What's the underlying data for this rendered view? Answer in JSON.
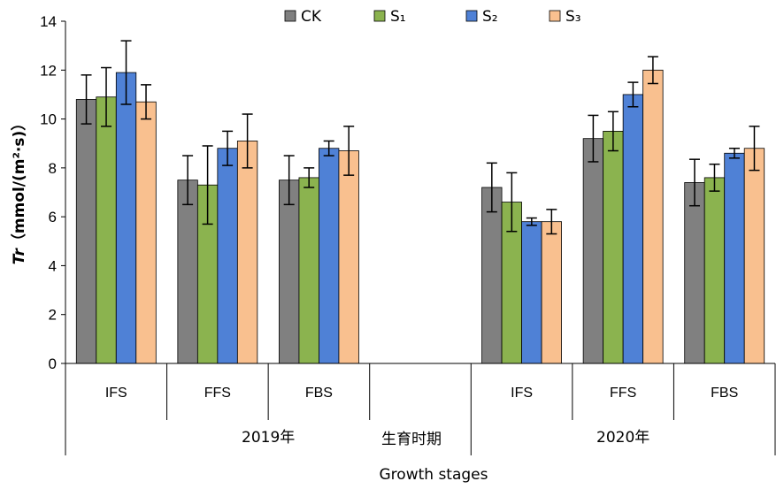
{
  "chart_data": {
    "type": "bar",
    "ylim": [
      0,
      14
    ],
    "yticks": [
      0,
      2,
      4,
      6,
      8,
      10,
      12,
      14
    ],
    "ylabel_symbol": "Tr",
    "ylabel_unit": "（mmol/(m²·s)）",
    "xlabel_cn": "生育时期",
    "xlabel_en": "Growth stages",
    "groups": [
      {
        "label": "2019年",
        "categories": [
          "IFS",
          "FFS",
          "FBS",
          ""
        ]
      },
      {
        "label": "2020年",
        "categories": [
          "IFS",
          "FFS",
          "FBS"
        ]
      }
    ],
    "categories": [
      "IFS",
      "FFS",
      "FBS",
      "",
      "IFS",
      "FFS",
      "FBS"
    ],
    "legend_position": "top",
    "series": [
      {
        "name": "CK",
        "color": "#808080",
        "values": [
          10.8,
          7.5,
          7.5,
          null,
          7.2,
          9.2,
          7.4
        ],
        "errors": [
          1.0,
          1.0,
          1.0,
          null,
          1.0,
          0.95,
          0.95
        ]
      },
      {
        "name": "S₁",
        "color": "#8bb34f",
        "values": [
          10.9,
          7.3,
          7.6,
          null,
          6.6,
          9.5,
          7.6
        ],
        "errors": [
          1.2,
          1.6,
          0.4,
          null,
          1.2,
          0.8,
          0.55
        ]
      },
      {
        "name": "S₂",
        "color": "#4f81d6",
        "values": [
          11.9,
          8.8,
          8.8,
          null,
          5.8,
          11.0,
          8.6
        ],
        "errors": [
          1.3,
          0.7,
          0.3,
          null,
          0.15,
          0.5,
          0.2
        ]
      },
      {
        "name": "S₃",
        "color": "#f9c08f",
        "values": [
          10.7,
          9.1,
          8.7,
          null,
          5.8,
          12.0,
          8.8
        ],
        "errors": [
          0.7,
          1.1,
          1.0,
          null,
          0.5,
          0.55,
          0.9
        ]
      }
    ]
  }
}
